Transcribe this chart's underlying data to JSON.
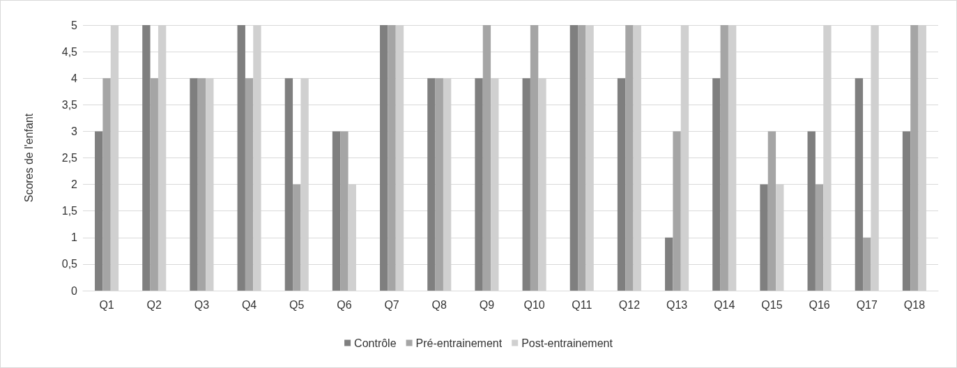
{
  "chart_data": {
    "type": "bar",
    "ylabel": "Scores de l'enfant",
    "categories": [
      "Q1",
      "Q2",
      "Q3",
      "Q4",
      "Q5",
      "Q6",
      "Q7",
      "Q8",
      "Q9",
      "Q10",
      "Q11",
      "Q12",
      "Q13",
      "Q14",
      "Q15",
      "Q16",
      "Q17",
      "Q18"
    ],
    "series": [
      {
        "name": "Contrôle",
        "color": "#7f7f7f",
        "values": [
          3,
          5,
          4,
          5,
          4,
          3,
          5,
          4,
          4,
          4,
          5,
          4,
          1,
          4,
          2,
          3,
          4,
          3
        ]
      },
      {
        "name": "Pré-entrainement",
        "color": "#a5a5a5",
        "values": [
          4,
          4,
          4,
          4,
          2,
          3,
          5,
          4,
          5,
          5,
          5,
          5,
          3,
          5,
          3,
          2,
          1,
          5
        ]
      },
      {
        "name": "Post-entrainement",
        "color": "#d0d0d0",
        "values": [
          5,
          5,
          4,
          5,
          4,
          2,
          5,
          4,
          4,
          4,
          5,
          5,
          5,
          5,
          2,
          5,
          5,
          5
        ]
      }
    ],
    "ylim": [
      0,
      5
    ],
    "yticks": [
      0,
      {
        "value": 0.5,
        "label": "0,5"
      },
      1,
      {
        "value": 1.5,
        "label": "1,5"
      },
      2,
      {
        "value": 2.5,
        "label": "2,5"
      },
      3,
      {
        "value": 3.5,
        "label": "3,5"
      },
      4,
      {
        "value": 4.5,
        "label": "4,5"
      },
      5
    ],
    "grid": "y",
    "legend": "bottom"
  }
}
